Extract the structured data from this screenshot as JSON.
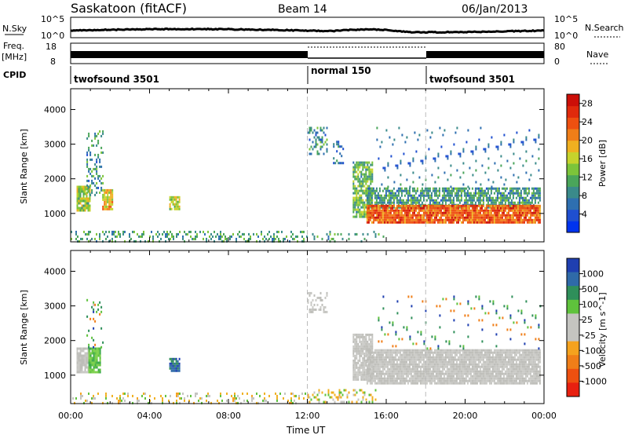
{
  "header": {
    "station": "Saskatoon (fitACF)",
    "beam": "Beam 14",
    "date": "06/Jan/2013"
  },
  "strip": {
    "nsky_label": "N.Sky",
    "nsky_ticks": [
      "10^5",
      "10^0"
    ],
    "nsearch_label": "N.Search",
    "nsearch_ticks": [
      "10^5",
      "10^0"
    ],
    "freq_label": "Freq.",
    "freq_unit": "[MHz]",
    "freq_ticks": [
      "18",
      "8"
    ],
    "nave_label": "Nave",
    "nave_ticks": [
      "80",
      "0"
    ],
    "cpid_label": "CPID",
    "cpid_segments": [
      {
        "label": "twofsound 3501",
        "start_hour": 0,
        "end_hour": 12
      },
      {
        "label": "normal 150",
        "start_hour": 12,
        "end_hour": 18
      },
      {
        "label": "twofsound 3501",
        "start_hour": 18,
        "end_hour": 24
      }
    ]
  },
  "chart_data": [
    {
      "type": "heatmap",
      "name": "power",
      "ylabel": "Slant Range [km]",
      "xlim_hours": [
        0,
        24
      ],
      "ylim": [
        180,
        4600
      ],
      "yticks": [
        1000,
        2000,
        3000,
        4000
      ],
      "grid_dashed_hours": [
        12,
        18
      ],
      "colorbar": {
        "label": "Power [dB]",
        "ticks": [
          4,
          8,
          12,
          16,
          20,
          24,
          28
        ],
        "range": [
          0,
          30
        ],
        "colors": [
          "#0033ee",
          "#1f4fd0",
          "#2e6fb0",
          "#3a8a8a",
          "#4aa55a",
          "#7cc43a",
          "#c6d32c",
          "#f0b020",
          "#f07e18",
          "#ee5010",
          "#e02a0c",
          "#cc0f08"
        ]
      },
      "scatter_regions": [
        {
          "t0": 0.3,
          "t1": 1.0,
          "r0": 1100,
          "r1": 1800,
          "value": 14,
          "density": 0.9
        },
        {
          "t0": 0.8,
          "t1": 1.6,
          "r0": 1500,
          "r1": 3400,
          "value": 9,
          "density": 0.35
        },
        {
          "t0": 1.6,
          "t1": 2.1,
          "r0": 1100,
          "r1": 1700,
          "value": 18,
          "density": 0.9
        },
        {
          "t0": 5.0,
          "t1": 5.5,
          "r0": 1150,
          "r1": 1500,
          "value": 15,
          "density": 0.85
        },
        {
          "t0": 12.0,
          "t1": 13.0,
          "r0": 2700,
          "r1": 3500,
          "value": 8,
          "density": 0.4
        },
        {
          "t0": 13.3,
          "t1": 13.8,
          "r0": 2450,
          "r1": 3100,
          "value": 6,
          "density": 0.4
        },
        {
          "t0": 14.3,
          "t1": 15.3,
          "r0": 900,
          "r1": 2500,
          "value": 12,
          "density": 0.8
        },
        {
          "t0": 15.0,
          "t1": 23.8,
          "r0": 1200,
          "r1": 1750,
          "value": 9,
          "density": 0.75
        },
        {
          "t0": 15.0,
          "t1": 23.8,
          "r0": 750,
          "r1": 1250,
          "value": 23,
          "density": 0.95
        },
        {
          "t0": 15.5,
          "t1": 23.8,
          "r0": 1750,
          "r1": 3500,
          "value": 6,
          "density": 0.12
        },
        {
          "t0": 0.0,
          "t1": 12.0,
          "r0": 200,
          "r1": 500,
          "value": 10,
          "density": 0.35
        },
        {
          "t0": 12.0,
          "t1": 16.0,
          "r0": 200,
          "r1": 500,
          "value": 10,
          "density": 0.2
        }
      ]
    },
    {
      "type": "heatmap",
      "name": "velocity",
      "ylabel": "Slant Range [km]",
      "xlabel": "Time UT",
      "xlim_hours": [
        0,
        24
      ],
      "ylim": [
        180,
        4600
      ],
      "yticks": [
        1000,
        2000,
        3000,
        4000
      ],
      "xticks": [
        "00:00",
        "04:00",
        "08:00",
        "12:00",
        "16:00",
        "20:00",
        "00:00"
      ],
      "xtick_hours": [
        0,
        4,
        8,
        12,
        16,
        20,
        24
      ],
      "grid_dashed_hours": [
        12,
        18
      ],
      "colorbar": {
        "label": "Velocity [m s^-1]",
        "ticks": [
          "1000",
          "500",
          "100",
          "25",
          "-25",
          "-100",
          "-500",
          "-1000"
        ],
        "colors": [
          "#1f3fb0",
          "#2f6aa8",
          "#2f8f5a",
          "#5fc23c",
          "#c4c4c0",
          "#c4c4c0",
          "#f5a21e",
          "#f07e18",
          "#ee5010",
          "#e82010"
        ]
      },
      "scatter_regions": [
        {
          "t0": 0.3,
          "t1": 1.0,
          "r0": 1100,
          "r1": 1800,
          "value": "gray",
          "density": 0.9
        },
        {
          "t0": 0.9,
          "t1": 1.5,
          "r0": 1100,
          "r1": 1800,
          "value": "green",
          "density": 0.9
        },
        {
          "t0": 0.8,
          "t1": 1.6,
          "r0": 1800,
          "r1": 3200,
          "value": "mixed",
          "density": 0.2
        },
        {
          "t0": 5.0,
          "t1": 5.5,
          "r0": 1150,
          "r1": 1500,
          "value": "blue",
          "density": 0.85
        },
        {
          "t0": 12.0,
          "t1": 13.0,
          "r0": 2800,
          "r1": 3400,
          "value": "gray",
          "density": 0.4
        },
        {
          "t0": 14.3,
          "t1": 15.3,
          "r0": 900,
          "r1": 2200,
          "value": "gray",
          "density": 0.85
        },
        {
          "t0": 15.0,
          "t1": 23.8,
          "r0": 750,
          "r1": 1750,
          "value": "gray",
          "density": 0.95
        },
        {
          "t0": 15.5,
          "t1": 23.8,
          "r0": 1750,
          "r1": 3300,
          "value": "mixed",
          "density": 0.08
        },
        {
          "t0": 0.0,
          "t1": 12.0,
          "r0": 200,
          "r1": 500,
          "value": "orange",
          "density": 0.3
        },
        {
          "t0": 12.0,
          "t1": 15.5,
          "r0": 200,
          "r1": 600,
          "value": "orange",
          "density": 0.35
        }
      ]
    }
  ]
}
